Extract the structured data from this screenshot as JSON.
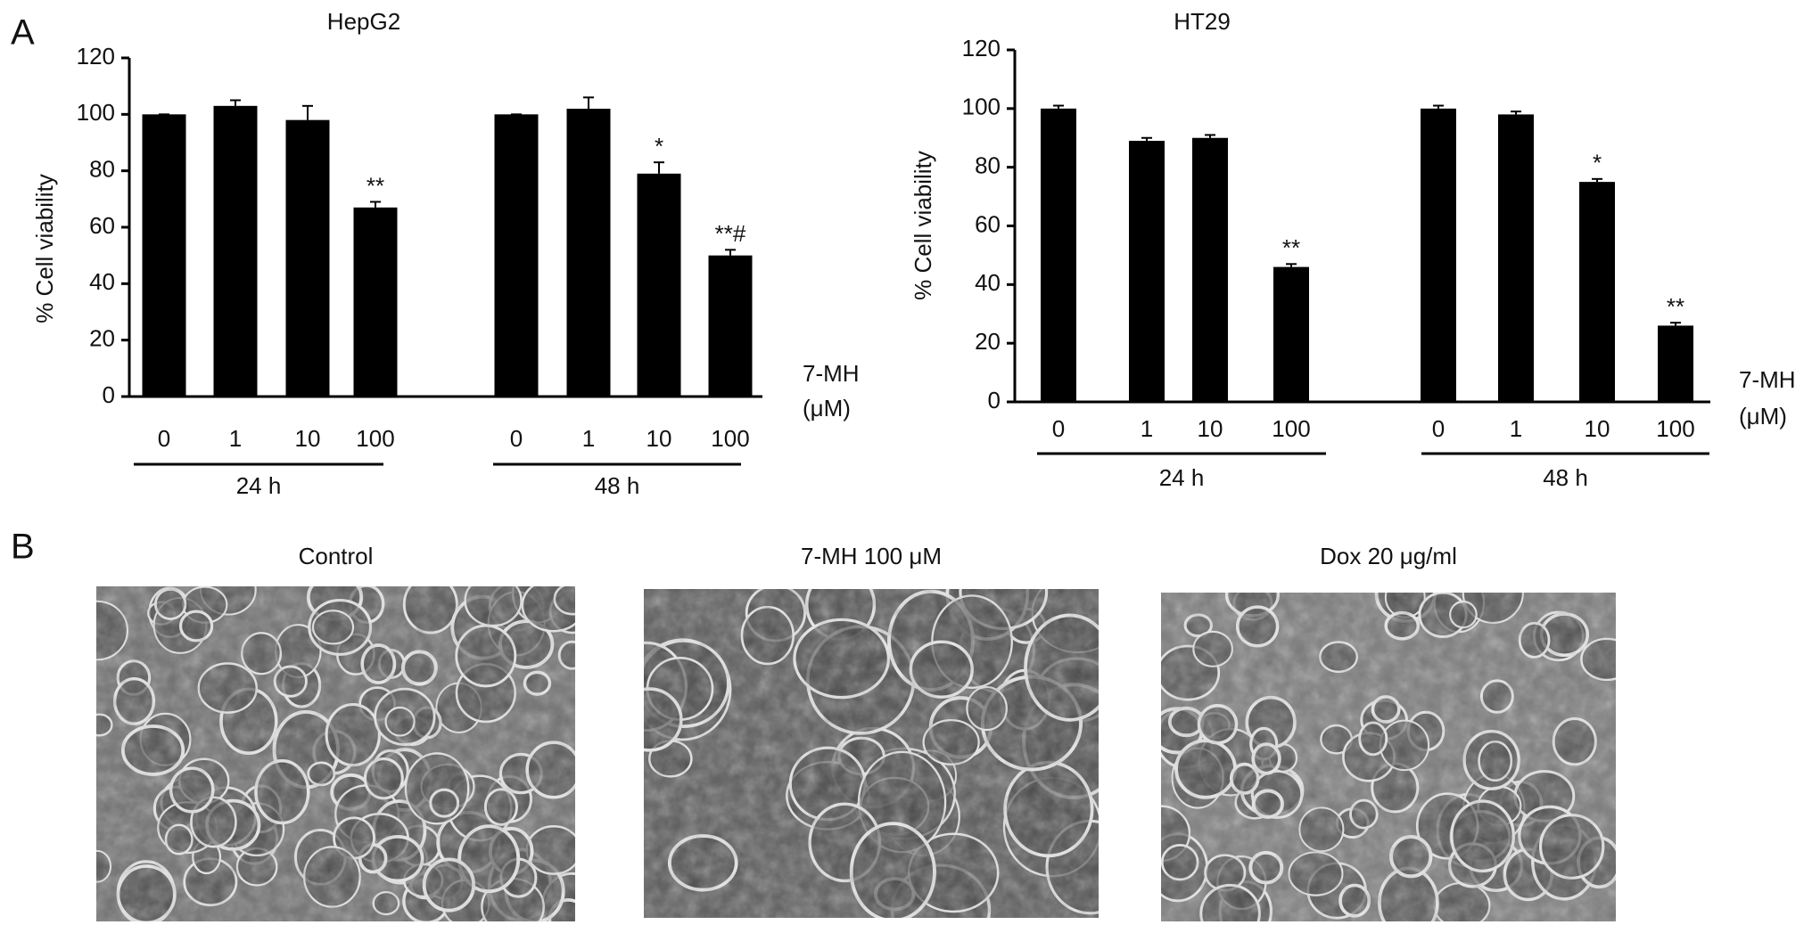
{
  "panel_labels": [
    "A",
    "B"
  ],
  "chart_data": [
    {
      "type": "bar",
      "title": "HepG2",
      "y_label": "% Cell viability",
      "x_label": [
        "7-MH",
        "(μM)"
      ],
      "color": "#000000",
      "ylim": [
        0,
        120
      ],
      "yticks": [
        0,
        20,
        40,
        60,
        80,
        100,
        120
      ],
      "groups": [
        {
          "label": "24 h",
          "categories": [
            "0",
            "1",
            "10",
            "100"
          ],
          "values": [
            100,
            103,
            98,
            67
          ],
          "errors": [
            0,
            2,
            5,
            2
          ],
          "markers": [
            null,
            null,
            null,
            "**"
          ]
        },
        {
          "label": "48 h",
          "categories": [
            "0",
            "1",
            "10",
            "100"
          ],
          "values": [
            100,
            102,
            79,
            50
          ],
          "errors": [
            0,
            4,
            4,
            2
          ],
          "markers": [
            null,
            null,
            "*",
            "**#"
          ]
        }
      ]
    },
    {
      "type": "bar",
      "title": "HT29",
      "y_label": "% Cell viability",
      "x_label": [
        "7-MH",
        "(μM)"
      ],
      "color": "#000000",
      "ylim": [
        0,
        120
      ],
      "yticks": [
        0,
        20,
        40,
        60,
        80,
        100,
        120
      ],
      "groups": [
        {
          "label": "24 h",
          "categories": [
            "0",
            "1",
            "10",
            "100"
          ],
          "values": [
            100,
            89,
            90,
            46
          ],
          "errors": [
            1,
            1,
            1,
            1
          ],
          "markers": [
            null,
            null,
            null,
            "**"
          ]
        },
        {
          "label": "48 h",
          "categories": [
            "0",
            "1",
            "10",
            "100"
          ],
          "values": [
            100,
            98,
            75,
            26
          ],
          "errors": [
            1,
            1,
            1,
            1
          ],
          "markers": [
            null,
            null,
            "*",
            "**"
          ]
        }
      ]
    }
  ],
  "images": [
    {
      "caption": "Control"
    },
    {
      "caption": "7-MH 100 μM"
    },
    {
      "caption": "Dox 20 μg/ml"
    }
  ]
}
